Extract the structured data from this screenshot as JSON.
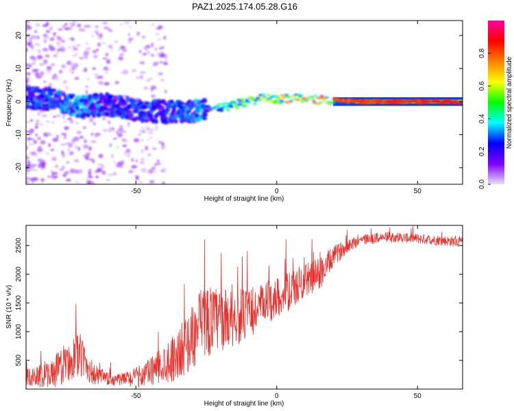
{
  "title": "PAZ1.2025.174.05.28.G16",
  "colors": {
    "snr_line": "#e8302c",
    "frame": "#000000",
    "background": "#ffffff"
  },
  "chart_data": [
    {
      "type": "heatmap",
      "title": "PAZ1.2025.174.05.28.G16",
      "xlabel": "Height of straight line (km)",
      "ylabel": "Frequency (Hz)",
      "xlim": [
        -89,
        66
      ],
      "ylim": [
        -25,
        24.5
      ],
      "xticks": [
        "-50",
        "0",
        "50"
      ],
      "xtick_values": [
        -50,
        0,
        50
      ],
      "yticks": [
        "-20",
        "-10",
        "0",
        "10",
        "20"
      ],
      "ytick_values": [
        -20,
        -10,
        0,
        10,
        20
      ],
      "colorbar": {
        "label": "Normalized spectral amplitude",
        "range": [
          0,
          1
        ],
        "ticks": [
          "0.0",
          "0.2",
          "0.4",
          "0.6",
          "0.8"
        ],
        "tick_values": [
          0.0,
          0.2,
          0.4,
          0.6,
          0.8
        ],
        "colormap": [
          "#e8e0f8",
          "#8000ff",
          "#0000ff",
          "#00ffff",
          "#00ff00",
          "#ffff00",
          "#ff8000",
          "#ff0000",
          "#ff00a0"
        ]
      },
      "ridge": {
        "x": [
          -89,
          -80,
          -70,
          -60,
          -50,
          -40,
          -30,
          -25,
          -20,
          -15,
          -10,
          -5,
          0,
          5,
          10,
          15,
          20,
          25,
          30,
          40,
          50,
          60,
          66
        ],
        "y": [
          1.5,
          0.5,
          -1.5,
          -1.0,
          -2.5,
          -3.0,
          -3.0,
          -2.0,
          -2.0,
          -1.0,
          0.0,
          1.0,
          0.5,
          1.0,
          1.0,
          0.5,
          0.5,
          0.2,
          0.0,
          0.0,
          0.0,
          0.0,
          0.0
        ],
        "amplitude": [
          0.3,
          0.3,
          0.35,
          0.3,
          0.3,
          0.3,
          0.35,
          0.35,
          0.45,
          0.5,
          0.6,
          0.65,
          0.7,
          0.7,
          0.75,
          0.75,
          0.8,
          0.82,
          0.85,
          0.88,
          0.9,
          0.92,
          0.92
        ]
      }
    },
    {
      "type": "line",
      "xlabel": "Height of straight line (km)",
      "ylabel": "SNR (10 * v/v)",
      "xlim": [
        -89,
        66
      ],
      "ylim": [
        0,
        2850
      ],
      "xticks": [
        "-50",
        "0",
        "50"
      ],
      "xtick_values": [
        -50,
        0,
        50
      ],
      "yticks": [
        "500",
        "1000",
        "1500",
        "2000",
        "2500"
      ],
      "ytick_values": [
        500,
        1000,
        1500,
        2000,
        2500
      ],
      "series": [
        {
          "color": "#e8302c",
          "envelope_x": [
            -89,
            -80,
            -75,
            -70,
            -65,
            -60,
            -55,
            -50,
            -45,
            -40,
            -35,
            -30,
            -27,
            -25,
            -20,
            -15,
            -10,
            -5,
            0,
            5,
            10,
            15,
            18,
            20,
            25,
            30,
            40,
            50,
            60,
            66
          ],
          "envelope_mean": [
            200,
            250,
            450,
            600,
            250,
            170,
            170,
            200,
            300,
            450,
            600,
            900,
            1100,
            1200,
            1200,
            1250,
            1300,
            1450,
            1600,
            1700,
            1900,
            2000,
            2150,
            2300,
            2500,
            2600,
            2650,
            2620,
            2580,
            2560
          ],
          "envelope_amplitude": [
            150,
            250,
            350,
            400,
            200,
            120,
            110,
            180,
            250,
            350,
            450,
            550,
            650,
            650,
            550,
            500,
            450,
            400,
            350,
            350,
            300,
            300,
            250,
            180,
            130,
            100,
            90,
            90,
            90,
            90
          ]
        }
      ]
    }
  ]
}
